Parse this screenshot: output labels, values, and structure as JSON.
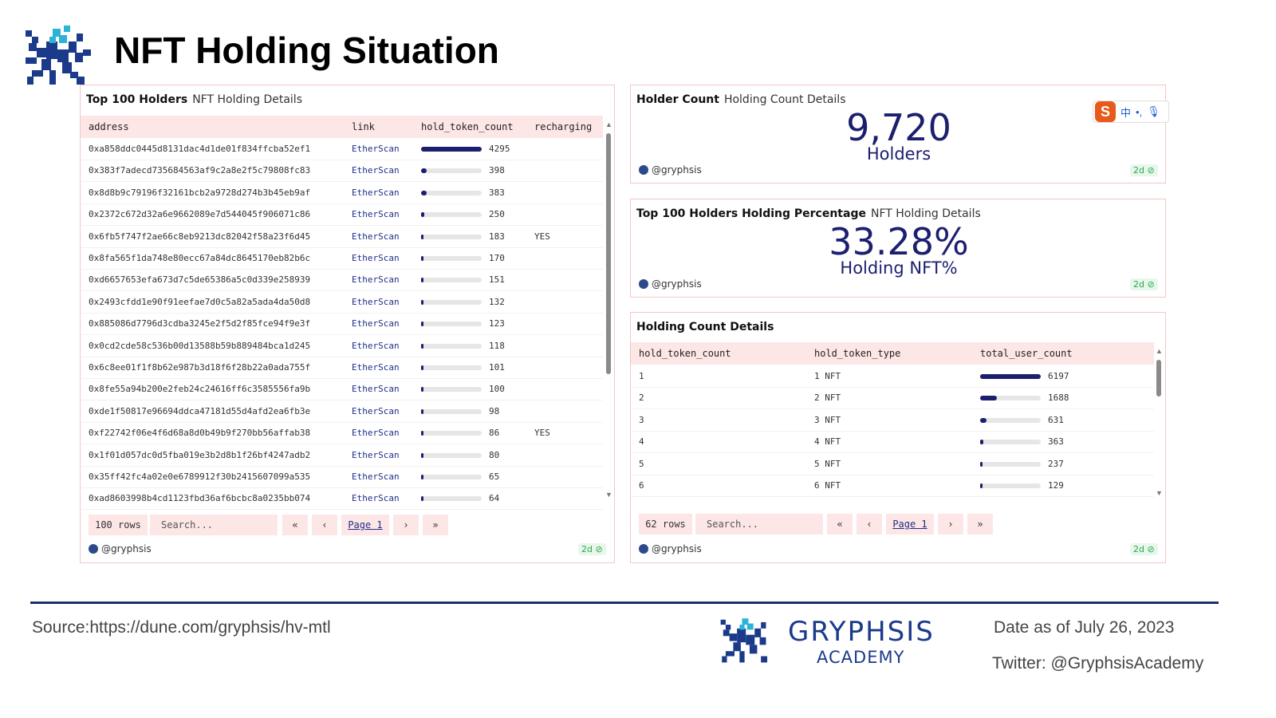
{
  "title": "NFT Holding Situation",
  "top_holders": {
    "title": "Top 100 Holders",
    "subtitle": "NFT Holding Details",
    "columns": [
      "address",
      "link",
      "hold_token_count",
      "recharging"
    ],
    "max_count": 4295,
    "rows": [
      {
        "address": "0xa858ddc0445d8131dac4d1de01f834ffcba52ef1",
        "link": "EtherScan",
        "count": 4295,
        "recharging": ""
      },
      {
        "address": "0x383f7adecd735684563af9c2a8e2f5c79808fc83",
        "link": "EtherScan",
        "count": 398,
        "recharging": ""
      },
      {
        "address": "0x8d8b9c79196f32161bcb2a9728d274b3b45eb9af",
        "link": "EtherScan",
        "count": 383,
        "recharging": ""
      },
      {
        "address": "0x2372c672d32a6e9662089e7d544045f906071c86",
        "link": "EtherScan",
        "count": 250,
        "recharging": ""
      },
      {
        "address": "0x6fb5f747f2ae66c8eb9213dc82042f58a23f6d45",
        "link": "EtherScan",
        "count": 183,
        "recharging": "YES"
      },
      {
        "address": "0x8fa565f1da748e80ecc67a84dc8645170eb82b6c",
        "link": "EtherScan",
        "count": 170,
        "recharging": ""
      },
      {
        "address": "0xd6657653efa673d7c5de65386a5c0d339e258939",
        "link": "EtherScan",
        "count": 151,
        "recharging": ""
      },
      {
        "address": "0x2493cfdd1e90f91eefae7d0c5a82a5ada4da50d8",
        "link": "EtherScan",
        "count": 132,
        "recharging": ""
      },
      {
        "address": "0x885086d7796d3cdba3245e2f5d2f85fce94f9e3f",
        "link": "EtherScan",
        "count": 123,
        "recharging": ""
      },
      {
        "address": "0x0cd2cde58c536b00d13588b59b889484bca1d245",
        "link": "EtherScan",
        "count": 118,
        "recharging": ""
      },
      {
        "address": "0x6c8ee01f1f8b62e987b3d18f6f28b22a0ada755f",
        "link": "EtherScan",
        "count": 101,
        "recharging": ""
      },
      {
        "address": "0x8fe55a94b200e2feb24c24616ff6c3585556fa9b",
        "link": "EtherScan",
        "count": 100,
        "recharging": ""
      },
      {
        "address": "0xde1f50817e96694ddca47181d55d4afd2ea6fb3e",
        "link": "EtherScan",
        "count": 98,
        "recharging": ""
      },
      {
        "address": "0xf22742f06e4f6d68a8d0b49b9f270bb56affab38",
        "link": "EtherScan",
        "count": 86,
        "recharging": "YES"
      },
      {
        "address": "0x1f01d057dc0d5fba019e3b2d8b1f26bf4247adb2",
        "link": "EtherScan",
        "count": 80,
        "recharging": ""
      },
      {
        "address": "0x35ff42fc4a02e0e6789912f30b2415607099a535",
        "link": "EtherScan",
        "count": 65,
        "recharging": ""
      },
      {
        "address": "0xad8603998b4cd1123fbd36af6bcbc8a0235bb074",
        "link": "EtherScan",
        "count": 64,
        "recharging": ""
      }
    ],
    "row_count": "100 rows",
    "search_placeholder": "Search...",
    "page": "Page 1",
    "author": "@gryphsis",
    "age": "2d"
  },
  "holder_count": {
    "title": "Holder Count",
    "subtitle": "Holding Count Details",
    "value": "9,720",
    "label": "Holders",
    "author": "@gryphsis",
    "age": "2d"
  },
  "holding_pct": {
    "title": "Top 100 Holders Holding Percentage",
    "subtitle": "NFT Holding Details",
    "value": "33.28%",
    "label": "Holding NFT%",
    "author": "@gryphsis",
    "age": "2d"
  },
  "count_details": {
    "title": "Holding Count Details",
    "columns": [
      "hold_token_count",
      "hold_token_type",
      "total_user_count"
    ],
    "max_count": 6197,
    "rows": [
      {
        "count": "1",
        "type": "1 NFT",
        "users": 6197
      },
      {
        "count": "2",
        "type": "2 NFT",
        "users": 1688
      },
      {
        "count": "3",
        "type": "3 NFT",
        "users": 631
      },
      {
        "count": "4",
        "type": "4 NFT",
        "users": 363
      },
      {
        "count": "5",
        "type": "5 NFT",
        "users": 237
      },
      {
        "count": "6",
        "type": "6 NFT",
        "users": 129
      }
    ],
    "row_count": "62 rows",
    "search_placeholder": "Search...",
    "page": "Page 1",
    "author": "@gryphsis",
    "age": "2d"
  },
  "ime": {
    "lang": "中"
  },
  "footer": {
    "source": "Source:https://dune.com/gryphsis/hv-mtl",
    "brand": "GRYPHSIS",
    "brand_sub": "ACADEMY",
    "date": "Date as of July 26, 2023",
    "twitter": "Twitter: @GryphsisAcademy"
  },
  "colors": {
    "accent": "#1b1f6e",
    "header_bg": "#fde6e6",
    "brand": "#1b3a8a"
  }
}
